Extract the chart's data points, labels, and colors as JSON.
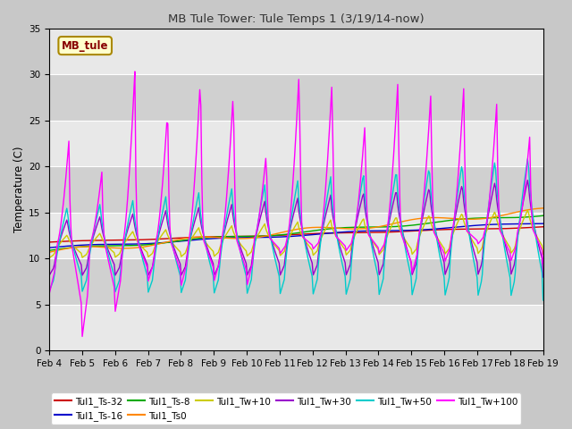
{
  "title": "MB Tule Tower: Tule Temps 1 (3/19/14-now)",
  "ylabel": "Temperature (C)",
  "ylim": [
    0,
    35
  ],
  "yticks": [
    0,
    5,
    10,
    15,
    20,
    25,
    30,
    35
  ],
  "x_labels": [
    "Feb 4",
    "Feb 5",
    "Feb 6",
    "Feb 7",
    "Feb 8",
    "Feb 9",
    "Feb 10",
    "Feb 11",
    "Feb 12",
    "Feb 13",
    "Feb 14",
    "Feb 15",
    "Feb 16",
    "Feb 17",
    "Feb 18",
    "Feb 19"
  ],
  "legend_label": "MB_tule",
  "bg_color": "#dcdcdc",
  "fig_color": "#c8c8c8",
  "series": [
    {
      "label": "Tul1_Ts-32",
      "color": "#cc0000"
    },
    {
      "label": "Tul1_Ts-16",
      "color": "#0000cc"
    },
    {
      "label": "Tul1_Ts-8",
      "color": "#00aa00"
    },
    {
      "label": "Tul1_Ts0",
      "color": "#ff8800"
    },
    {
      "label": "Tul1_Tw+10",
      "color": "#cccc00"
    },
    {
      "label": "Tul1_Tw+30",
      "color": "#9900cc"
    },
    {
      "label": "Tul1_Tw+50",
      "color": "#00cccc"
    },
    {
      "label": "Tul1_Tw+100",
      "color": "#ff00ff"
    }
  ],
  "stripe_color_light": "#e8e8e8",
  "stripe_color_dark": "#d0d0d0"
}
